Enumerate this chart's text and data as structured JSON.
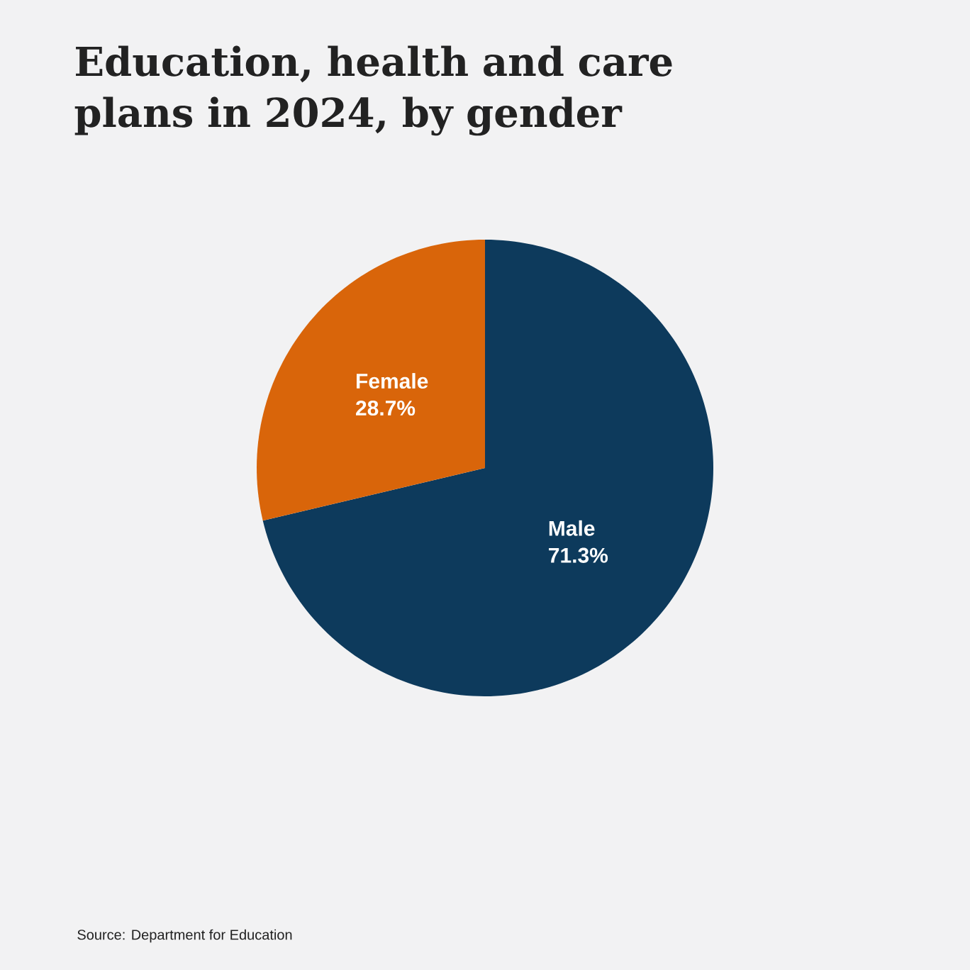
{
  "chart_data": {
    "type": "pie",
    "title": "Education, health and care plans in 2024, by gender",
    "categories": [
      "Male",
      "Female"
    ],
    "values": [
      71.3,
      28.7
    ],
    "colors": [
      "#0d3a5c",
      "#d9650a"
    ],
    "value_labels": [
      "71.3%",
      "28.7%"
    ],
    "annotations": [
      "Source: Department for Education"
    ]
  }
}
